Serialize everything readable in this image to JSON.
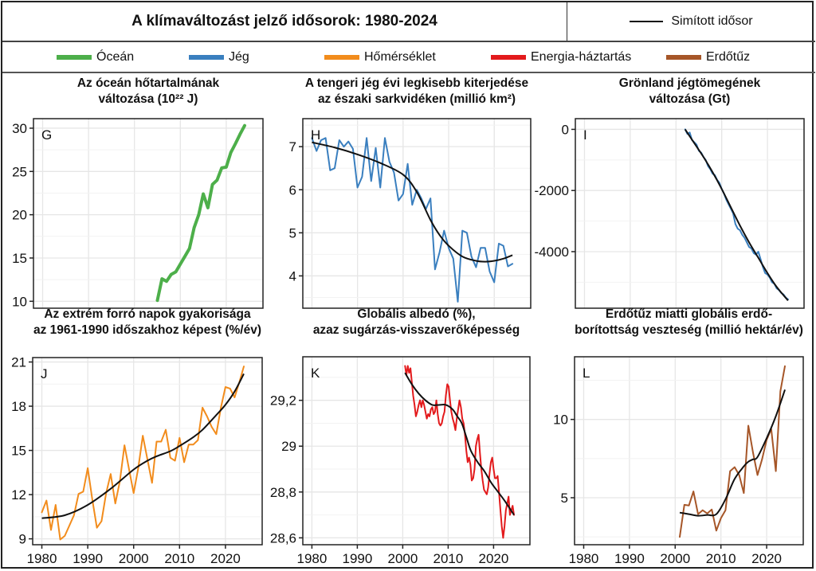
{
  "header": {
    "title": "A klímaváltozást jelző idősorok: 1980-2024",
    "smooth_legend_label": "Simított idősor"
  },
  "legend": {
    "items": [
      {
        "label": "Óceán",
        "color": "#4daf4a"
      },
      {
        "label": "Jég",
        "color": "#3a7fbf"
      },
      {
        "label": "Hőmérséklet",
        "color": "#f28c1c"
      },
      {
        "label": "Energia-háztartás",
        "color": "#e31a1c"
      },
      {
        "label": "Erdőtűz",
        "color": "#a65628"
      }
    ]
  },
  "chart_data": [
    {
      "id": "G",
      "type": "line",
      "title": [
        "Az óceán hőtartalmának",
        "változása (10²² J)"
      ],
      "xlabel": "",
      "ylabel": "",
      "xlim": [
        1978,
        2028
      ],
      "ylim": [
        9.2,
        31.1
      ],
      "xticks": [
        1980,
        1990,
        2000,
        2010,
        2020
      ],
      "show_xtick_labels": false,
      "yticks": [
        10,
        15,
        20,
        25,
        30
      ],
      "ytick_labels": [
        "10",
        "15",
        "20",
        "25",
        "30"
      ],
      "grid": true,
      "color": "#4daf4a",
      "line_width": 4,
      "series": {
        "name": "Óceán",
        "x": [
          2005,
          2006,
          2007,
          2008,
          2009,
          2010,
          2011,
          2012,
          2013,
          2014,
          2015,
          2016,
          2017,
          2018,
          2019,
          2020,
          2021,
          2022,
          2023,
          2024
        ],
        "y": [
          10.1,
          12.6,
          12.3,
          13.1,
          13.4,
          14.3,
          15.2,
          16.1,
          18.5,
          20.0,
          22.4,
          20.8,
          23.5,
          24.0,
          25.4,
          25.5,
          27.2,
          28.2,
          29.3,
          30.3
        ]
      },
      "smooth": null
    },
    {
      "id": "H",
      "type": "line",
      "title": [
        "A tengeri jég évi legkisebb kiterjedése",
        "az északi sarkvidéken (millió km²)"
      ],
      "xlabel": "",
      "ylabel": "",
      "xlim": [
        1978,
        2028
      ],
      "ylim": [
        3.25,
        7.65
      ],
      "xticks": [
        1980,
        1990,
        2000,
        2010,
        2020
      ],
      "show_xtick_labels": false,
      "yticks": [
        4,
        5,
        6,
        7
      ],
      "ytick_labels": [
        "4",
        "5",
        "6",
        "7"
      ],
      "grid": true,
      "color": "#3a7fbf",
      "line_width": 2,
      "series": {
        "name": "Jég",
        "x": [
          1980,
          1981,
          1982,
          1983,
          1984,
          1985,
          1986,
          1987,
          1988,
          1989,
          1990,
          1991,
          1992,
          1993,
          1994,
          1995,
          1996,
          1997,
          1998,
          1999,
          2000,
          2001,
          2002,
          2003,
          2004,
          2005,
          2006,
          2007,
          2008,
          2009,
          2010,
          2011,
          2012,
          2013,
          2014,
          2015,
          2016,
          2017,
          2018,
          2019,
          2020,
          2021,
          2022,
          2023,
          2024
        ],
        "y": [
          7.2,
          6.9,
          7.15,
          7.2,
          6.45,
          6.5,
          7.15,
          7.0,
          7.12,
          6.95,
          6.05,
          6.3,
          7.2,
          6.2,
          6.97,
          6.05,
          7.2,
          6.65,
          6.4,
          5.75,
          5.9,
          6.6,
          5.65,
          6.0,
          5.8,
          5.55,
          5.8,
          4.15,
          4.55,
          5.05,
          4.65,
          4.4,
          3.4,
          5.05,
          5.0,
          4.45,
          4.2,
          4.65,
          4.65,
          4.1,
          3.85,
          4.75,
          4.7,
          4.22,
          4.28
        ]
      },
      "smooth": {
        "x": [
          1980,
          1985,
          1990,
          1995,
          2000,
          2003,
          2006,
          2008,
          2010,
          2013,
          2016,
          2018,
          2020,
          2022,
          2024
        ],
        "y": [
          7.1,
          6.98,
          6.82,
          6.62,
          6.35,
          5.95,
          5.3,
          4.95,
          4.7,
          4.45,
          4.35,
          4.33,
          4.35,
          4.4,
          4.48
        ]
      }
    },
    {
      "id": "I",
      "type": "line",
      "title": [
        "Grönland jégtömegének",
        "változása (Gt)"
      ],
      "xlabel": "",
      "ylabel": "",
      "xlim": [
        1978,
        2028
      ],
      "ylim": [
        -5850,
        350
      ],
      "xticks": [
        1980,
        1990,
        2000,
        2010,
        2020
      ],
      "show_xtick_labels": false,
      "yticks": [
        0,
        -2000,
        -4000
      ],
      "ytick_labels": [
        "0",
        "-2000",
        "-4000"
      ],
      "grid": true,
      "color": "#3a7fbf",
      "line_width": 2,
      "series": {
        "name": "Jég",
        "x": [
          2002,
          2002.5,
          2003,
          2003.5,
          2004,
          2004.5,
          2005,
          2005.5,
          2006,
          2006.5,
          2007,
          2007.5,
          2008,
          2008.5,
          2009,
          2009.5,
          2010,
          2010.5,
          2011,
          2011.5,
          2012,
          2012.5,
          2013,
          2013.5,
          2014,
          2014.5,
          2015,
          2015.5,
          2016,
          2016.5,
          2017,
          2017.5,
          2018,
          2018.5,
          2019,
          2019.5,
          2020,
          2020.5,
          2021,
          2021.5,
          2022,
          2022.5,
          2023,
          2023.5,
          2024,
          2024.5
        ],
        "y": [
          0,
          -150,
          -100,
          -350,
          -420,
          -500,
          -700,
          -760,
          -900,
          -1000,
          -1200,
          -1300,
          -1450,
          -1500,
          -1650,
          -1750,
          -1950,
          -2100,
          -2300,
          -2450,
          -2600,
          -2750,
          -3100,
          -3250,
          -3300,
          -3450,
          -3550,
          -3700,
          -3850,
          -3900,
          -4050,
          -4100,
          -4000,
          -4250,
          -4500,
          -4700,
          -4750,
          -4850,
          -5000,
          -5050,
          -5200,
          -5250,
          -5350,
          -5400,
          -5500,
          -5560
        ]
      },
      "smooth": {
        "x": [
          2002,
          2004,
          2006,
          2008,
          2010,
          2012,
          2014,
          2016,
          2018,
          2020,
          2022,
          2024.5
        ],
        "y": [
          0,
          -450,
          -900,
          -1400,
          -1950,
          -2550,
          -3150,
          -3700,
          -4200,
          -4700,
          -5150,
          -5600
        ]
      }
    },
    {
      "id": "J",
      "type": "line",
      "title": [
        "Az extrém forró napok gyakorisága",
        "az 1961-1990 időszakhoz képest (%/év)"
      ],
      "xlabel": "",
      "ylabel": "",
      "xlim": [
        1978,
        2028
      ],
      "ylim": [
        8.6,
        21.3
      ],
      "xticks": [
        1980,
        1990,
        2000,
        2010,
        2020
      ],
      "show_xtick_labels": true,
      "xtick_labels": [
        "1980",
        "1990",
        "2000",
        "2010",
        "2020"
      ],
      "yticks": [
        9,
        12,
        15,
        18,
        21
      ],
      "ytick_labels": [
        "9",
        "12",
        "15",
        "18",
        "21"
      ],
      "grid": true,
      "color": "#f28c1c",
      "line_width": 2,
      "series": {
        "name": "Hőmérséklet",
        "x": [
          1980,
          1981,
          1982,
          1983,
          1984,
          1985,
          1986,
          1987,
          1988,
          1989,
          1990,
          1991,
          1992,
          1993,
          1994,
          1995,
          1996,
          1997,
          1998,
          1999,
          2000,
          2001,
          2002,
          2003,
          2004,
          2005,
          2006,
          2007,
          2008,
          2009,
          2010,
          2011,
          2012,
          2013,
          2014,
          2015,
          2016,
          2017,
          2018,
          2019,
          2020,
          2021,
          2022,
          2023,
          2024
        ],
        "y": [
          10.8,
          11.6,
          9.6,
          11.3,
          8.95,
          9.2,
          9.9,
          10.6,
          12.05,
          12.2,
          13.8,
          11.65,
          9.75,
          10.2,
          12.1,
          13.4,
          11.4,
          12.9,
          15.35,
          13.7,
          12.1,
          13.8,
          16.0,
          14.4,
          12.8,
          15.6,
          15.6,
          16.4,
          14.5,
          14.3,
          15.85,
          14.2,
          15.4,
          15.4,
          15.7,
          17.9,
          17.3,
          16.6,
          16.1,
          17.9,
          19.3,
          19.2,
          18.6,
          19.6,
          20.7
        ]
      },
      "smooth": {
        "x": [
          1980,
          1985,
          1990,
          1995,
          2000,
          2003,
          2005,
          2008,
          2010,
          2013,
          2015,
          2018,
          2020,
          2022,
          2024
        ],
        "y": [
          10.4,
          10.6,
          11.3,
          12.4,
          13.7,
          14.3,
          14.6,
          14.95,
          15.3,
          15.9,
          16.4,
          17.4,
          18.1,
          19.0,
          20.2
        ]
      }
    },
    {
      "id": "K",
      "type": "line",
      "title": [
        "Globális albedó (%),",
        "azaz sugárzás-visszaverőképesség"
      ],
      "xlabel": "",
      "ylabel": "",
      "xlim": [
        1978,
        2028
      ],
      "ylim": [
        28.57,
        29.39
      ],
      "xticks": [
        1980,
        1990,
        2000,
        2010,
        2020
      ],
      "show_xtick_labels": true,
      "xtick_labels": [
        "1980",
        "1990",
        "2000",
        "2010",
        "2020"
      ],
      "yticks": [
        28.6,
        28.8,
        29.0,
        29.2
      ],
      "ytick_labels": [
        "28,6",
        "28,8",
        "29",
        "29,2"
      ],
      "grid": true,
      "color": "#e31a1c",
      "line_width": 2,
      "series": {
        "name": "Energia-háztartás",
        "x": [
          2000.5,
          2000.8,
          2001.1,
          2001.4,
          2001.7,
          2002,
          2002.3,
          2002.6,
          2002.9,
          2003.2,
          2003.5,
          2003.8,
          2004.1,
          2004.4,
          2004.7,
          2005,
          2005.3,
          2005.6,
          2005.9,
          2006.2,
          2006.5,
          2006.8,
          2007.1,
          2007.4,
          2007.7,
          2008,
          2008.3,
          2008.6,
          2008.9,
          2009.2,
          2009.5,
          2009.8,
          2010.1,
          2010.4,
          2010.7,
          2011,
          2011.3,
          2011.6,
          2011.9,
          2012.2,
          2012.5,
          2012.8,
          2013.1,
          2013.4,
          2013.7,
          2014,
          2014.3,
          2014.6,
          2014.9,
          2015.2,
          2015.5,
          2015.8,
          2016.1,
          2016.4,
          2016.7,
          2017,
          2017.3,
          2017.6,
          2017.9,
          2018.2,
          2018.5,
          2018.8,
          2019.1,
          2019.4,
          2019.7,
          2020,
          2020.3,
          2020.6,
          2020.9,
          2021.2,
          2021.5,
          2021.8,
          2022.1,
          2022.4,
          2022.7,
          2023,
          2023.3,
          2023.6,
          2023.9,
          2024.2,
          2024.5
        ],
        "y": [
          29.35,
          29.31,
          29.35,
          29.32,
          29.34,
          29.28,
          29.22,
          29.18,
          29.13,
          29.15,
          29.18,
          29.2,
          29.17,
          29.2,
          29.18,
          29.15,
          29.12,
          29.14,
          29.13,
          29.16,
          29.17,
          29.14,
          29.15,
          29.2,
          29.14,
          29.1,
          29.09,
          29.1,
          29.13,
          29.15,
          29.22,
          29.27,
          29.26,
          29.2,
          29.15,
          29.12,
          29.1,
          29.07,
          29.12,
          29.16,
          29.2,
          29.17,
          29.12,
          29.1,
          29.05,
          28.98,
          28.93,
          28.95,
          28.92,
          28.85,
          28.86,
          28.9,
          29.0,
          29.03,
          29.05,
          28.97,
          28.9,
          28.85,
          28.81,
          28.8,
          28.79,
          28.82,
          28.88,
          28.93,
          28.95,
          28.9,
          28.86,
          28.86,
          28.87,
          28.8,
          28.72,
          28.65,
          28.6,
          28.65,
          28.72,
          28.75,
          28.78,
          28.7,
          28.72,
          28.74,
          28.7
        ]
      },
      "smooth": {
        "x": [
          2000.5,
          2002,
          2003.5,
          2005,
          2006.5,
          2008,
          2009.5,
          2011,
          2012,
          2013,
          2014,
          2015,
          2016.5,
          2018,
          2019.5,
          2021,
          2022.5,
          2024.5
        ],
        "y": [
          29.32,
          29.27,
          29.23,
          29.2,
          29.18,
          29.18,
          29.18,
          29.16,
          29.13,
          29.1,
          29.04,
          28.98,
          28.93,
          28.89,
          28.84,
          28.8,
          28.76,
          28.7
        ]
      }
    },
    {
      "id": "L",
      "type": "line",
      "title": [
        "Erdőtűz miatti globális erdő-",
        "borítottság veszteség (millió hektár/év)"
      ],
      "xlabel": "",
      "ylabel": "",
      "xlim": [
        1978,
        2028
      ],
      "ylim": [
        2.0,
        14.0
      ],
      "xticks": [
        1980,
        1990,
        2000,
        2010,
        2020
      ],
      "show_xtick_labels": true,
      "xtick_labels": [
        "1980",
        "1990",
        "2000",
        "2010",
        "2020"
      ],
      "yticks": [
        5,
        10
      ],
      "ytick_labels": [
        "5",
        "10"
      ],
      "grid": true,
      "color": "#a65628",
      "line_width": 2,
      "series": {
        "name": "Erdőtűz",
        "x": [
          2001,
          2002,
          2003,
          2004,
          2005,
          2006,
          2007,
          2008,
          2009,
          2010,
          2011,
          2012,
          2013,
          2014,
          2015,
          2016,
          2017,
          2018,
          2019,
          2020,
          2021,
          2022,
          2023,
          2024
        ],
        "y": [
          2.5,
          4.55,
          4.5,
          5.4,
          3.95,
          4.2,
          4.0,
          4.25,
          2.9,
          3.7,
          4.2,
          6.7,
          6.95,
          6.45,
          5.3,
          9.6,
          7.9,
          6.45,
          7.45,
          8.7,
          9.4,
          6.7,
          11.8,
          13.4
        ]
      },
      "smooth": {
        "x": [
          2001,
          2003,
          2005,
          2007,
          2009,
          2011,
          2013,
          2015,
          2016,
          2017,
          2018,
          2020,
          2022,
          2024
        ],
        "y": [
          4.05,
          3.95,
          3.85,
          3.9,
          3.95,
          4.9,
          6.2,
          7.0,
          7.3,
          7.45,
          7.6,
          8.8,
          10.2,
          11.9
        ]
      }
    }
  ]
}
